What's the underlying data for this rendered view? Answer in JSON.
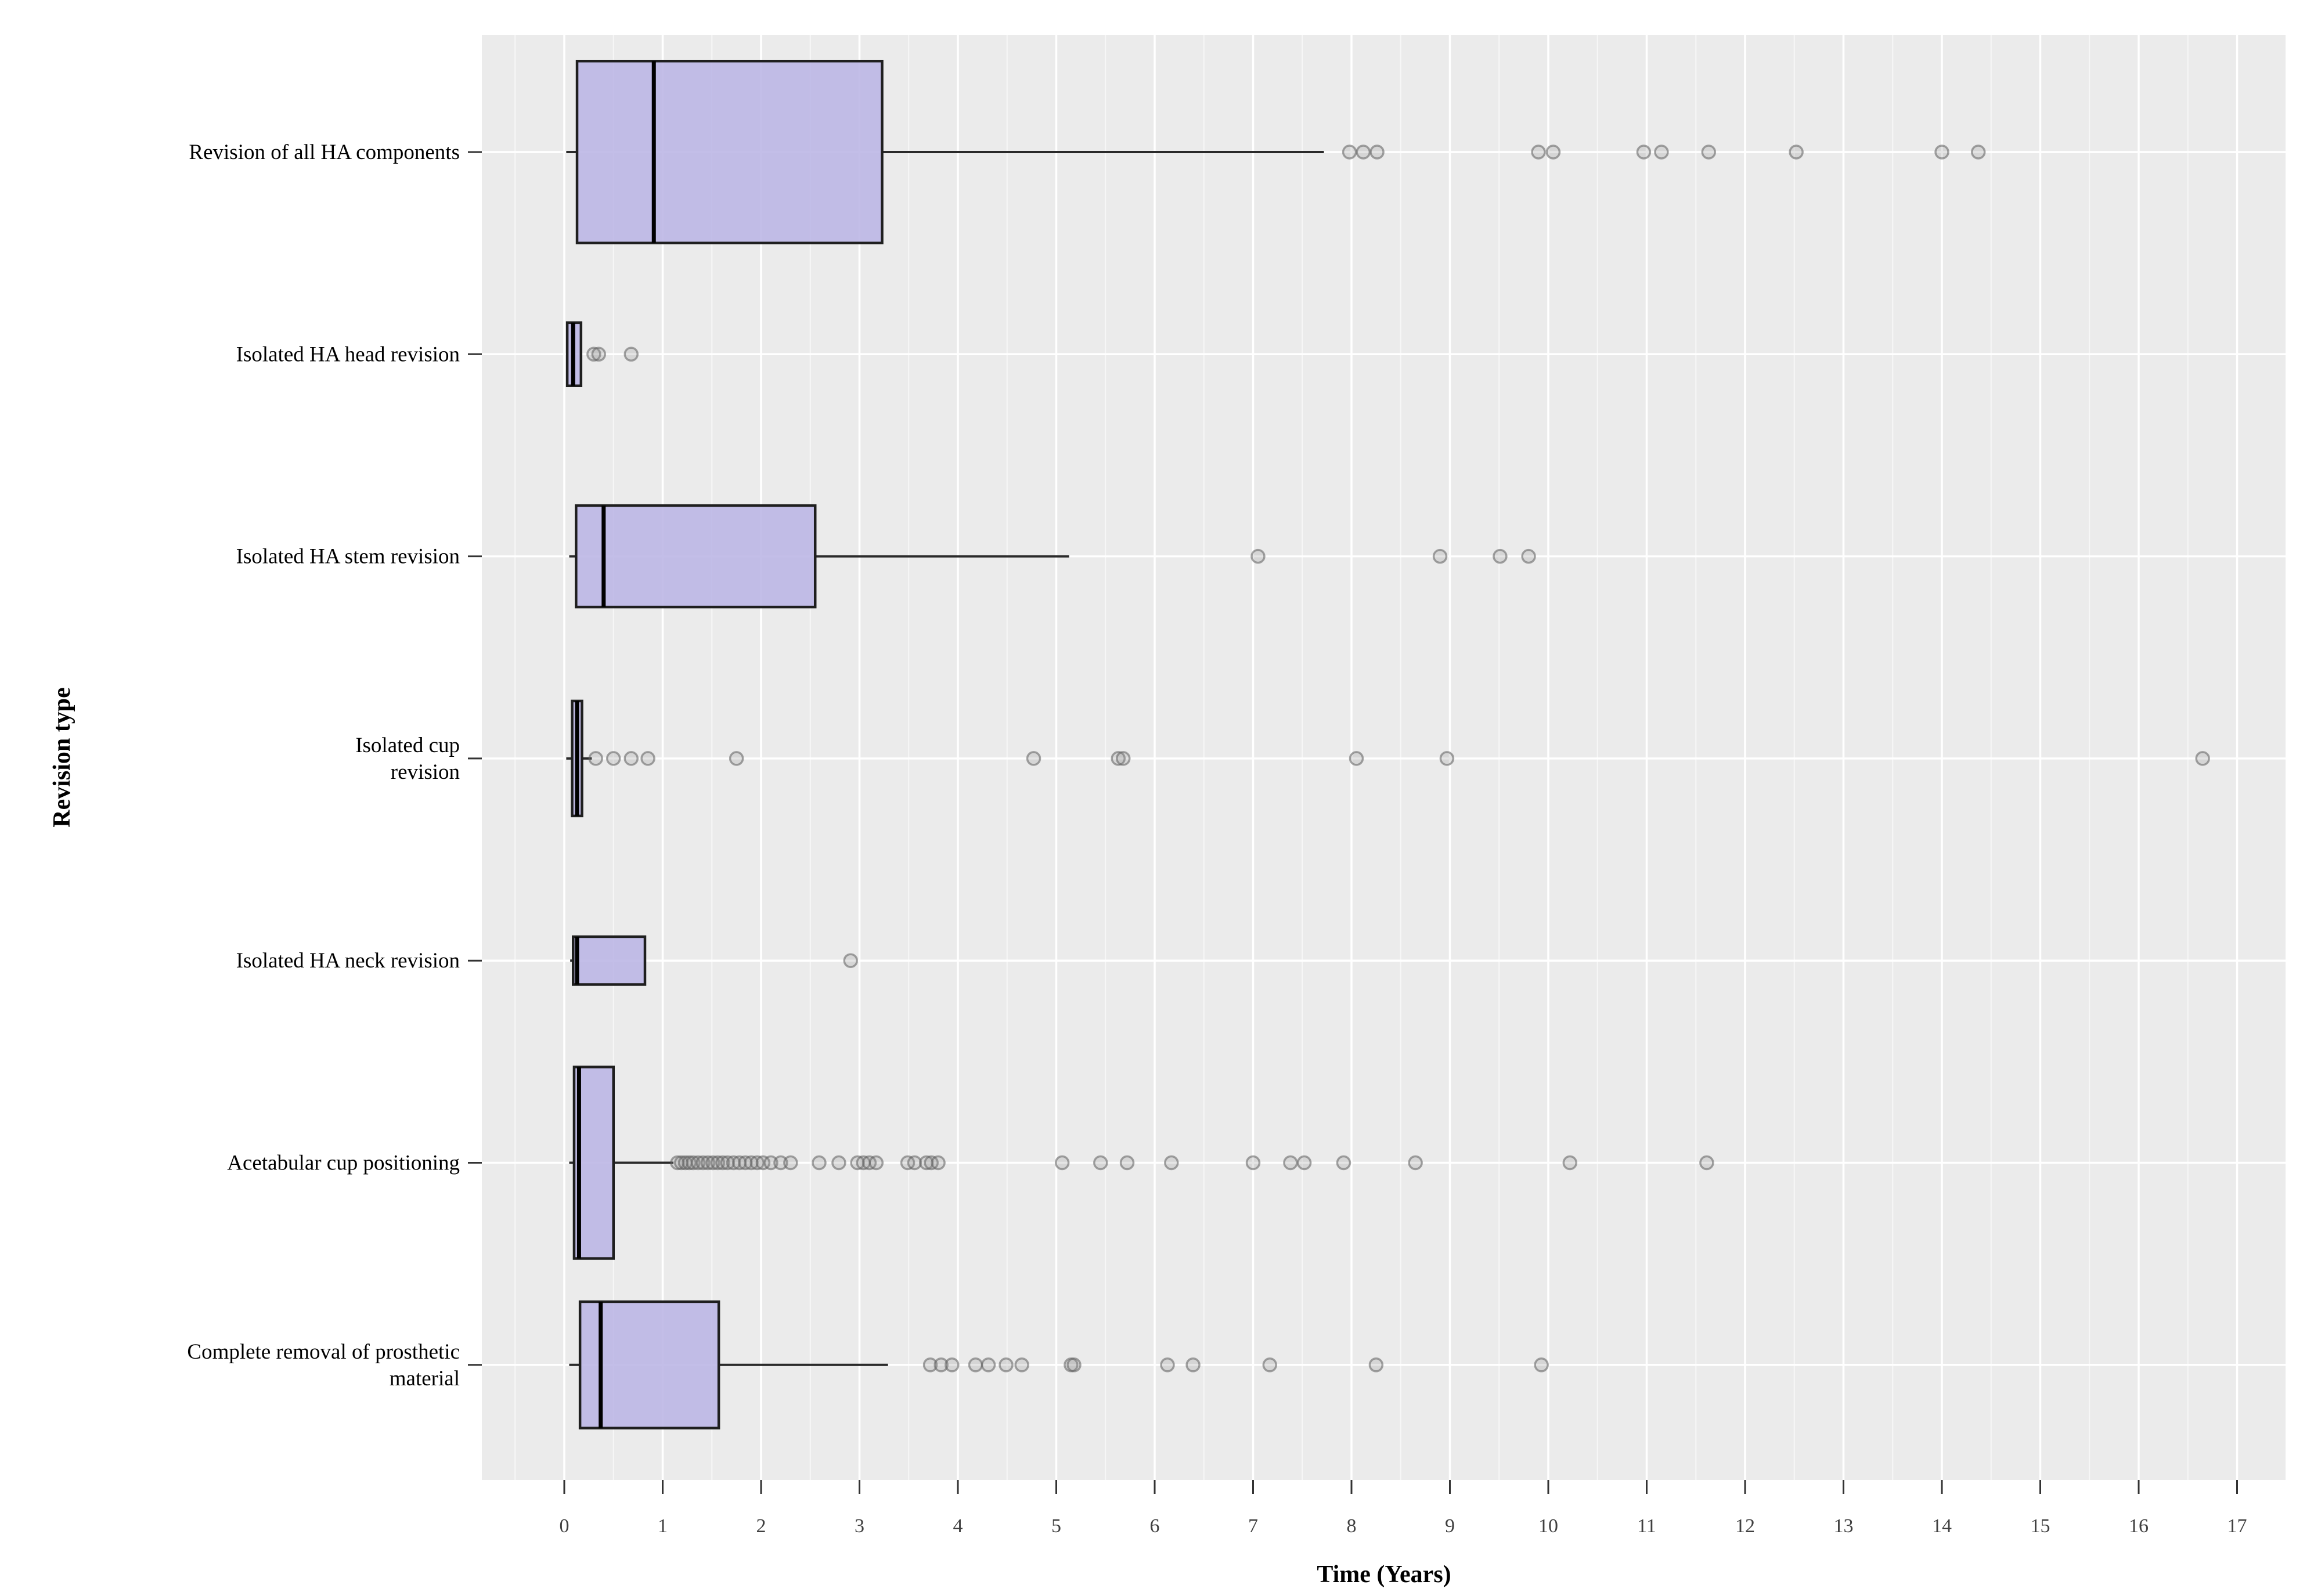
{
  "figure": {
    "background": "#ffffff",
    "panel_background": "#ebebeb",
    "grid_major_color": "#ffffff",
    "grid_minor_color": "#f7f7f7",
    "box_fill": "#bdb7e6",
    "box_stroke": "#1f1f1f",
    "median_color": "#000000",
    "whisker_color": "#2a2a2a",
    "outlier_fill": "#8a8a8a",
    "outlier_stroke": "#5f5f5f",
    "tick_color": "#333333"
  },
  "chart_data": {
    "type": "boxplot",
    "orientation": "horizontal",
    "xlabel": "Time (Years)",
    "ylabel": "Revision type",
    "xlim": [
      -0.85,
      17.5
    ],
    "x_ticks": [
      0,
      1,
      2,
      3,
      4,
      5,
      6,
      7,
      8,
      9,
      10,
      11,
      12,
      13,
      14,
      15,
      16,
      17
    ],
    "grid": "ggplot style: white major gridlines every 1 year and at each category, faint minor gridlines every 0.5 year",
    "legend": "none",
    "categories": [
      "Revision of all HA components",
      "Isolated HA head revision",
      "Isolated HA stem revision",
      "Isolated cup\nrevision",
      "Isolated HA neck revision",
      "Acetabular cup positioning",
      "Complete removal of prosthetic\nmaterial"
    ],
    "series": [
      {
        "name": "Revision of all HA components",
        "whisker_low": 0.02,
        "q1": 0.13,
        "median": 0.91,
        "q3": 3.23,
        "whisker_high": 7.72,
        "box_height_frac": 0.95,
        "outliers": [
          7.98,
          8.12,
          8.26,
          9.9,
          10.05,
          10.97,
          11.15,
          11.63,
          12.52,
          14.0,
          14.37
        ]
      },
      {
        "name": "Isolated HA head revision",
        "whisker_low": 0.02,
        "q1": 0.03,
        "median": 0.09,
        "q3": 0.17,
        "whisker_high": 0.18,
        "box_height_frac": 0.33,
        "outliers": [
          0.3,
          0.35,
          0.68
        ]
      },
      {
        "name": "Isolated HA stem revision",
        "whisker_low": 0.05,
        "q1": 0.12,
        "median": 0.4,
        "q3": 2.55,
        "whisker_high": 5.13,
        "box_height_frac": 0.53,
        "outliers": [
          7.05,
          8.9,
          9.51,
          9.8
        ]
      },
      {
        "name": "Isolated cup revision",
        "whisker_low": 0.02,
        "q1": 0.08,
        "median": 0.13,
        "q3": 0.18,
        "whisker_high": 0.28,
        "box_height_frac": 0.6,
        "outliers": [
          0.32,
          0.5,
          0.68,
          0.85,
          1.75,
          4.77,
          5.63,
          5.68,
          8.05,
          8.97,
          16.65
        ]
      },
      {
        "name": "Isolated HA neck revision",
        "whisker_low": 0.06,
        "q1": 0.09,
        "median": 0.13,
        "q3": 0.82,
        "whisker_high": 0.82,
        "box_height_frac": 0.25,
        "outliers": [
          2.91
        ]
      },
      {
        "name": "Acetabular cup positioning",
        "whisker_low": 0.05,
        "q1": 0.1,
        "median": 0.15,
        "q3": 0.5,
        "whisker_high": 1.11,
        "box_height_frac": 1.0,
        "outliers": [
          1.15,
          1.19,
          1.23,
          1.27,
          1.31,
          1.36,
          1.41,
          1.46,
          1.51,
          1.56,
          1.61,
          1.66,
          1.72,
          1.78,
          1.84,
          1.9,
          1.96,
          2.02,
          2.1,
          2.2,
          2.3,
          2.59,
          2.79,
          2.98,
          3.04,
          3.1,
          3.17,
          3.49,
          3.56,
          3.68,
          3.73,
          3.8,
          5.06,
          5.45,
          5.72,
          6.17,
          7.0,
          7.38,
          7.52,
          7.92,
          8.65,
          10.22,
          11.61
        ]
      },
      {
        "name": "Complete removal of prosthetic material",
        "whisker_low": 0.05,
        "q1": 0.16,
        "median": 0.37,
        "q3": 1.57,
        "whisker_high": 3.29,
        "box_height_frac": 0.66,
        "outliers": [
          3.72,
          3.83,
          3.94,
          4.18,
          4.31,
          4.49,
          4.65,
          5.15,
          5.18,
          6.13,
          6.39,
          7.17,
          8.25,
          9.93
        ]
      }
    ]
  }
}
